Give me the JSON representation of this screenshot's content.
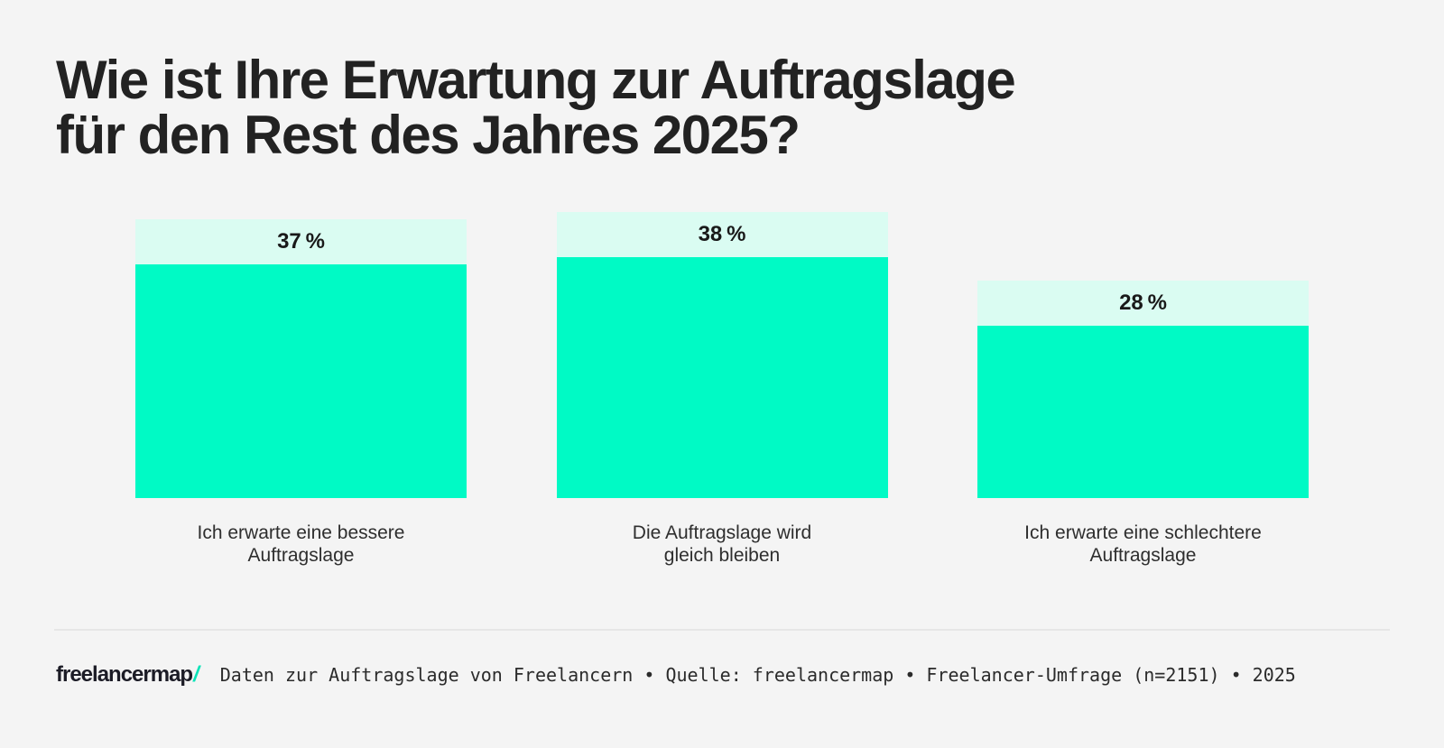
{
  "header": {
    "title_lines": [
      "Wie ist Ihre Erwartung zur Auftragslage",
      "für den Rest des Jahres 2025?"
    ]
  },
  "chart_data": {
    "type": "bar",
    "title": "Wie ist Ihre Erwartung zur Auftragslage für den Rest des Jahres 2025?",
    "categories": [
      "Ich erwarte eine bessere\nAuftragslage",
      "Die Auftragslage wird\ngleich bleiben",
      "Ich erwarte eine schlechtere\nAuftragslage"
    ],
    "values": [
      37,
      38,
      28
    ],
    "display_values": [
      "37 %",
      "38 %",
      "28 %"
    ],
    "unit": "%",
    "xlabel": "",
    "ylabel": "",
    "legend": false,
    "grid": false,
    "orientation": "vertical",
    "bar_color": "#00fac5",
    "value_strip_color": "#dafcf2",
    "value_text_color": "#191919"
  },
  "footer": {
    "logo_text": "freelancermap",
    "logo_slash": "/",
    "caption": "Daten zur Auftragslage von Freelancern • Quelle: freelancermap • Freelancer-Umfrage (n=2151) • 2025"
  },
  "colors": {
    "background": "#f4f4f4",
    "accent_mint": "#00fac5",
    "accent_mint_pale": "#dafcf2",
    "logo_slash_mint": "#0be3b8",
    "title_text": "#222222",
    "divider": "#e6e6e6"
  }
}
